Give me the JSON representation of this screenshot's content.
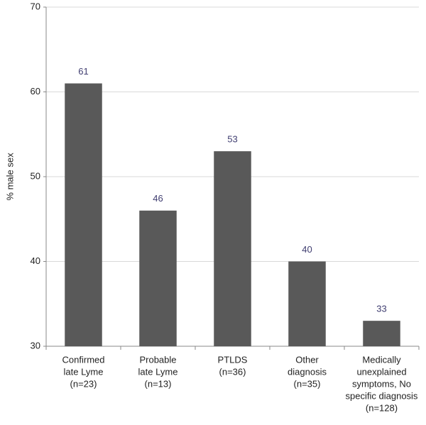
{
  "chart_data": {
    "type": "bar",
    "y_label": "% male sex",
    "categories": [
      [
        "Confirmed",
        "late Lyme",
        "(n=23)"
      ],
      [
        "Probable",
        "late Lyme",
        "(n=13)"
      ],
      [
        "PTLDS",
        "(n=36)"
      ],
      [
        "Other",
        "diagnosis",
        "(n=35)"
      ],
      [
        "Medically",
        "unexplained",
        "symptoms, No",
        "specific diagnosis",
        "(n=128)"
      ]
    ],
    "values": [
      61,
      46,
      53,
      40,
      33
    ],
    "color": "#595959",
    "ylim": [
      30,
      70
    ],
    "yticks": [
      30,
      40,
      50,
      60,
      70
    ],
    "grid": true
  }
}
